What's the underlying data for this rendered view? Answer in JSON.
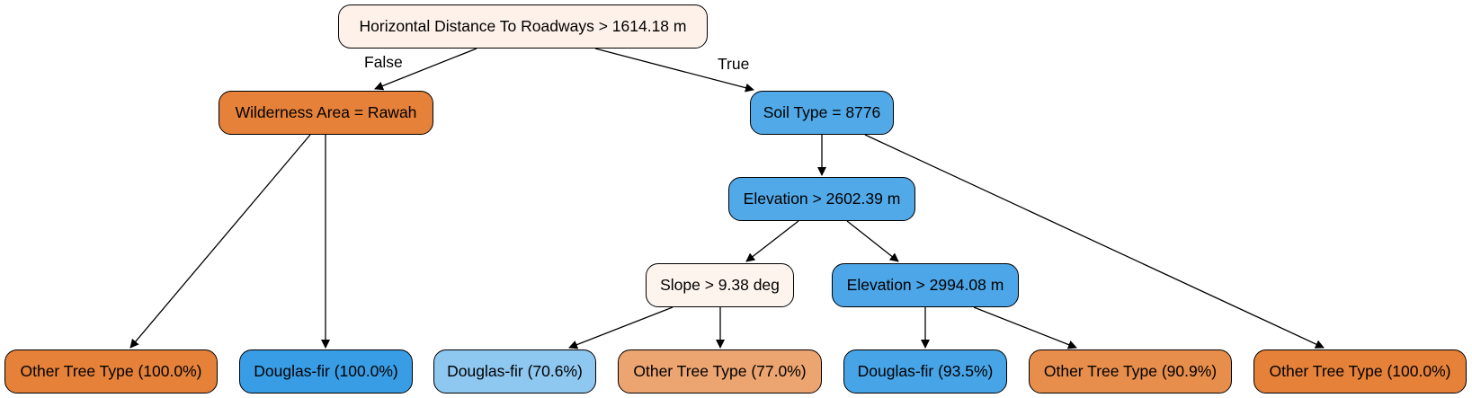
{
  "nodes": {
    "root": {
      "label": "Horizontal Distance To Roadways > 1614.18 m",
      "fill": "#fdf1e9"
    },
    "wild": {
      "label": "Wilderness Area = Rawah",
      "fill": "#e58139"
    },
    "soil": {
      "label": "Soil Type = 8776",
      "fill": "#51a9e8"
    },
    "elev1": {
      "label": "Elevation > 2602.39 m",
      "fill": "#51a9e8"
    },
    "slope": {
      "label": "Slope > 9.38 deg",
      "fill": "#fdf4ee"
    },
    "elev2": {
      "label": "Elevation > 2994.08 m",
      "fill": "#4ca6e8"
    }
  },
  "leaves": [
    {
      "label": "Other Tree Type (100.0%)",
      "fill": "#e58139"
    },
    {
      "label": "Douglas-fir (100.0%)",
      "fill": "#399de5"
    },
    {
      "label": "Douglas-fir (70.6%)",
      "fill": "#8ec7f0"
    },
    {
      "label": "Other Tree Type (77.0%)",
      "fill": "#eca470"
    },
    {
      "label": "Douglas-fir (93.5%)",
      "fill": "#46a4e7"
    },
    {
      "label": "Other Tree Type (90.9%)",
      "fill": "#e88e4d"
    },
    {
      "label": "Other Tree Type (100.0%)",
      "fill": "#e58139"
    }
  ],
  "edge_labels": {
    "false": "False",
    "true": "True"
  }
}
